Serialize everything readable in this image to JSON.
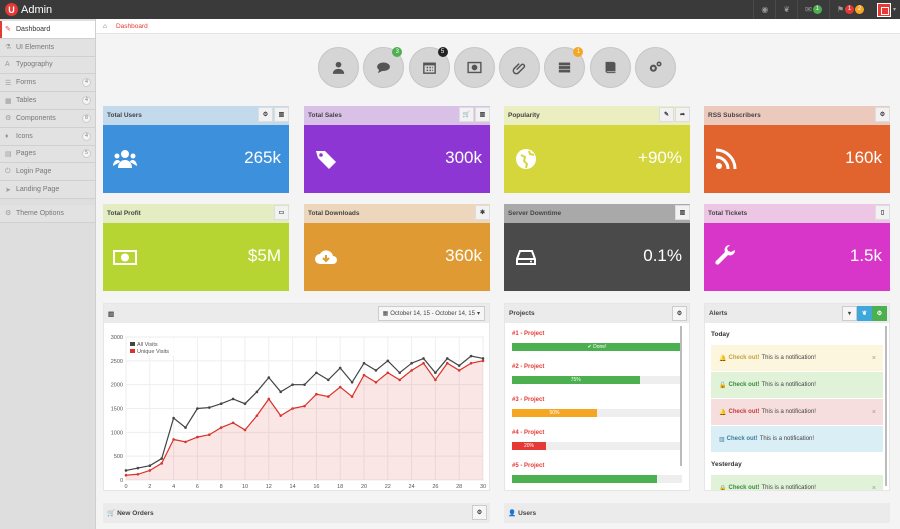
{
  "app": {
    "logo_letter": "U",
    "title": "Admin"
  },
  "topbar": {
    "icons": [
      {
        "name": "rss-icon",
        "glyph": "◉"
      },
      {
        "name": "twitter-icon",
        "glyph": "❦"
      },
      {
        "name": "mail-icon",
        "glyph": "✉",
        "badge": "1",
        "badge_color": "green"
      },
      {
        "name": "flag-icon",
        "glyph": "⚑",
        "badges": [
          "1",
          "2"
        ]
      }
    ]
  },
  "sidebar": {
    "items": [
      {
        "label": "Dashboard",
        "icon": "✎",
        "active": true
      },
      {
        "label": "UI Elements",
        "icon": "⚗"
      },
      {
        "label": "Typography",
        "icon": "A"
      },
      {
        "label": "Forms",
        "icon": "☰",
        "count": "4"
      },
      {
        "label": "Tables",
        "icon": "▦",
        "count": "4"
      },
      {
        "label": "Components",
        "icon": "⚙",
        "count": "8"
      },
      {
        "label": "Icons",
        "icon": "♦",
        "count": "4"
      },
      {
        "label": "Pages",
        "icon": "▤",
        "count": "5"
      },
      {
        "label": "Login Page",
        "icon": "⏻"
      },
      {
        "label": "Landing Page",
        "icon": "➤"
      }
    ],
    "theme_options": {
      "label": "Theme Options",
      "icon": "⚙"
    }
  },
  "breadcrumb": {
    "home_icon": "⌂",
    "current": "Dashboard"
  },
  "shortcuts": [
    {
      "name": "user-icon"
    },
    {
      "name": "chat-icon",
      "badge": "3",
      "badge_color": "#4caf50"
    },
    {
      "name": "calendar-icon",
      "badge": "5",
      "badge_color": "#222"
    },
    {
      "name": "photo-icon"
    },
    {
      "name": "paperclip-icon"
    },
    {
      "name": "server-icon",
      "badge": "1",
      "badge_color": "#f5a623"
    },
    {
      "name": "book-icon"
    },
    {
      "name": "gears-icon"
    }
  ],
  "tiles": [
    {
      "title": "Total Users",
      "value": "265k",
      "head": "#c3d9ec",
      "body": "#3d90dc",
      "icon": "users-icon",
      "buttons": [
        "⚙",
        "▥"
      ]
    },
    {
      "title": "Total Sales",
      "value": "300k",
      "head": "#d8c0e6",
      "body": "#8e36d4",
      "icon": "tags-icon",
      "buttons": [
        "🛒",
        "▥"
      ]
    },
    {
      "title": "Popularity",
      "value": "+90%",
      "head": "#eaeec0",
      "body": "#d5d63b",
      "icon": "globe-icon",
      "buttons": [
        "✎",
        "➦"
      ]
    },
    {
      "title": "RSS Subscribers",
      "value": "160k",
      "head": "#ebc9bd",
      "body": "#e1642f",
      "icon": "rss-icon",
      "buttons": [
        "⚙"
      ]
    },
    {
      "title": "Total Profit",
      "value": "$5M",
      "head": "#e4ecc1",
      "body": "#b7d532",
      "icon": "money-icon",
      "buttons": [
        "▭"
      ]
    },
    {
      "title": "Total Downloads",
      "value": "360k",
      "head": "#ecd7bd",
      "body": "#e09a33",
      "icon": "cloud-download-icon",
      "buttons": [
        "✱"
      ]
    },
    {
      "title": "Server Downtime",
      "value": "0.1%",
      "head": "#a9a9a9",
      "body": "#4a4a4a",
      "icon": "hdd-icon",
      "buttons": [
        "▥"
      ]
    },
    {
      "title": "Total Tickets",
      "value": "1.5k",
      "head": "#edc6e6",
      "body": "#d836c8",
      "icon": "wrench-icon",
      "buttons": [
        "▯"
      ]
    }
  ],
  "chart_panel": {
    "chart_icon": "▥",
    "date_range": "October 14, 15 - October 14, 15"
  },
  "chart_data": {
    "type": "line",
    "x": [
      0,
      1,
      2,
      3,
      4,
      5,
      6,
      7,
      8,
      9,
      10,
      11,
      12,
      13,
      14,
      15,
      16,
      17,
      18,
      19,
      20,
      21,
      22,
      23,
      24,
      25,
      26,
      27,
      28,
      29,
      30
    ],
    "xticks": [
      0,
      2,
      4,
      6,
      8,
      10,
      12,
      14,
      16,
      18,
      20,
      22,
      24,
      26,
      28,
      30
    ],
    "yticks": [
      0,
      500,
      1000,
      1500,
      2000,
      2500,
      3000
    ],
    "ylim": [
      0,
      3000
    ],
    "xlim": [
      0,
      30
    ],
    "legend_position": "top-left",
    "series": [
      {
        "name": "All Visits",
        "color": "#444444",
        "values": [
          200,
          250,
          300,
          450,
          1300,
          1100,
          1500,
          1520,
          1600,
          1700,
          1600,
          1850,
          2150,
          1850,
          2000,
          2000,
          2250,
          2100,
          2350,
          2050,
          2450,
          2300,
          2500,
          2250,
          2450,
          2550,
          2250,
          2550,
          2400,
          2600,
          2550
        ]
      },
      {
        "name": "Unique Visits",
        "color": "#d9342b",
        "values": [
          100,
          120,
          200,
          350,
          850,
          800,
          900,
          950,
          1100,
          1200,
          1050,
          1350,
          1700,
          1350,
          1500,
          1550,
          1800,
          1750,
          1950,
          1750,
          2200,
          2050,
          2250,
          2100,
          2300,
          2450,
          2100,
          2450,
          2300,
          2450,
          2500
        ]
      }
    ]
  },
  "projects": {
    "title": "Projects",
    "items": [
      {
        "name": "#1 - Project",
        "percent": 100,
        "label": "✔ Done!",
        "color": "#4caf50"
      },
      {
        "name": "#2 - Project",
        "percent": 75,
        "label": "75%",
        "color": "#4caf50"
      },
      {
        "name": "#3 - Project",
        "percent": 50,
        "label": "50%",
        "color": "#f5a623"
      },
      {
        "name": "#4 - Project",
        "percent": 20,
        "label": "20%",
        "color": "#e53935"
      },
      {
        "name": "#5 - Project",
        "percent": 85,
        "label": "",
        "color": "#4caf50"
      }
    ]
  },
  "alerts": {
    "title": "Alerts",
    "sections": [
      {
        "heading": "Today",
        "items": [
          {
            "icon": "bell-icon",
            "glyph": "🔔",
            "strong": "Check out!",
            "text": "This is a notification!",
            "bg": "#fcf6de",
            "ic": "#c6a23c",
            "close": true
          },
          {
            "icon": "unlock-icon",
            "glyph": "🔓",
            "strong": "Check out!",
            "text": "This is a notification!",
            "bg": "#e0f2d8",
            "ic": "#3c8a3c",
            "close": false
          },
          {
            "icon": "bell-icon",
            "glyph": "🔔",
            "strong": "Check out!",
            "text": "This is a notification!",
            "bg": "#f6dede",
            "ic": "#c43b3b",
            "close": true
          },
          {
            "icon": "chart-icon",
            "glyph": "▥",
            "strong": "Check out!",
            "text": "This is a notification!",
            "bg": "#daeef6",
            "ic": "#3a7ea0",
            "close": false
          }
        ]
      },
      {
        "heading": "Yesterday",
        "items": [
          {
            "icon": "lock-icon",
            "glyph": "🔒",
            "strong": "Check out!",
            "text": "This is a notification!",
            "bg": "#e0f2d8",
            "ic": "#3c8a3c",
            "close": true
          }
        ]
      }
    ]
  },
  "bottom": {
    "orders": "New Orders",
    "users": "Users"
  }
}
